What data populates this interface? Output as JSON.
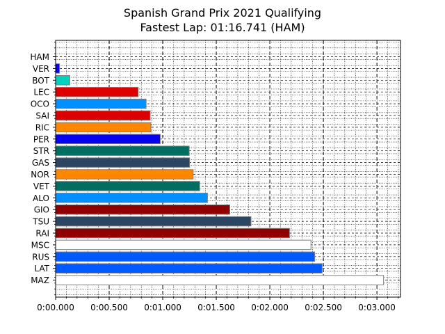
{
  "chart_data": {
    "type": "bar",
    "orientation": "horizontal",
    "title": "Spanish Grand Prix 2021 Qualifying",
    "subtitle": "Fastest Lap: 01:16.741 (HAM)",
    "xlabel": "",
    "ylabel": "",
    "xlim": [
      0,
      3.22
    ],
    "x_ticks": [
      {
        "value": 0.0,
        "label": "0:00.000"
      },
      {
        "value": 0.5,
        "label": "0:00.500"
      },
      {
        "value": 1.0,
        "label": "0:01.000"
      },
      {
        "value": 1.5,
        "label": "0:01.500"
      },
      {
        "value": 2.0,
        "label": "0:02.000"
      },
      {
        "value": 2.5,
        "label": "0:02.500"
      },
      {
        "value": 3.0,
        "label": "0:03.000"
      }
    ],
    "grid": true,
    "legend": "none",
    "categories": [
      "HAM",
      "VER",
      "BOT",
      "LEC",
      "OCO",
      "SAI",
      "RIC",
      "PER",
      "STR",
      "GAS",
      "NOR",
      "VET",
      "ALO",
      "GIO",
      "TSU",
      "RAI",
      "MSC",
      "RUS",
      "LAT",
      "MAZ"
    ],
    "values": [
      0.0,
      0.036,
      0.132,
      0.771,
      0.845,
      0.883,
      0.889,
      0.977,
      1.247,
      1.251,
      1.284,
      1.345,
      1.418,
      1.626,
      1.824,
      2.184,
      2.384,
      2.419,
      2.488,
      3.062
    ],
    "colors": [
      "#00D2BE",
      "#0600EF",
      "#00D2BE",
      "#DC0000",
      "#0090FF",
      "#DC0000",
      "#FF8700",
      "#0600EF",
      "#006F62",
      "#2B4562",
      "#FF8700",
      "#006F62",
      "#0090FF",
      "#900000",
      "#2B4562",
      "#900000",
      "#FFFFFF",
      "#005AFF",
      "#005AFF",
      "#FFFFFF"
    ]
  }
}
